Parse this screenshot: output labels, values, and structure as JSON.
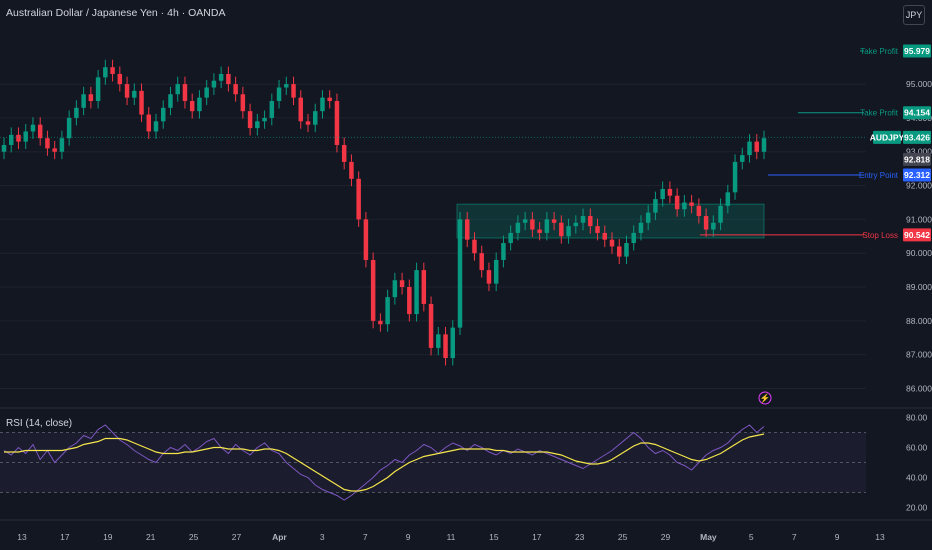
{
  "header": {
    "title": "Australian Dollar / Japanese Yen · 4h · OANDA",
    "currency": "JPY"
  },
  "rsi": {
    "label": "RSI (14, close)",
    "levels": [
      "80.00",
      "60.00",
      "40.00",
      "20.00"
    ]
  },
  "colors": {
    "background": "#131722",
    "up": "#089981",
    "down": "#f23645",
    "rsi_line": "#7e57c2",
    "rsi_ma": "#f5e64b",
    "entry": "#2962ff",
    "take_profit": "#089981",
    "stop_loss": "#f23645"
  },
  "chart_data": {
    "type": "candlestick",
    "symbol": "AUDJPY",
    "timeframe": "4h",
    "ylim": [
      85.6,
      96.6
    ],
    "price_ticks": [
      "95.000",
      "94.000",
      "93.000",
      "92.000",
      "91.000",
      "90.000",
      "89.000",
      "88.000",
      "87.000",
      "86.000"
    ],
    "x_ticks": [
      "13",
      "17",
      "19",
      "21",
      "25",
      "27",
      "Apr",
      "3",
      "7",
      "9",
      "11",
      "15",
      "17",
      "23",
      "25",
      "29",
      "May",
      "5",
      "7",
      "9",
      "13"
    ],
    "closes": [
      93.2,
      93.5,
      93.3,
      93.6,
      93.8,
      93.4,
      93.1,
      93.0,
      93.4,
      94.0,
      94.3,
      94.7,
      94.5,
      95.2,
      95.5,
      95.3,
      95.0,
      94.6,
      94.8,
      94.1,
      93.6,
      93.9,
      94.3,
      94.7,
      95.0,
      94.5,
      94.2,
      94.6,
      94.9,
      95.1,
      95.3,
      95.0,
      94.7,
      94.2,
      93.7,
      93.9,
      94.0,
      94.5,
      94.9,
      95.0,
      94.6,
      93.9,
      93.8,
      94.2,
      94.6,
      94.5,
      93.2,
      92.7,
      92.2,
      91.0,
      89.8,
      88.0,
      87.9,
      88.7,
      89.2,
      89.0,
      88.2,
      89.5,
      88.5,
      87.2,
      87.6,
      86.9,
      87.8,
      91.0,
      90.4,
      90.0,
      89.5,
      89.1,
      89.8,
      90.3,
      90.6,
      90.9,
      91.0,
      90.7,
      90.6,
      91.0,
      90.9,
      90.5,
      90.8,
      90.9,
      91.1,
      90.8,
      90.6,
      90.4,
      90.2,
      89.9,
      90.3,
      90.6,
      90.9,
      91.2,
      91.6,
      91.9,
      91.7,
      91.3,
      91.5,
      91.4,
      91.1,
      90.7,
      90.9,
      91.4,
      91.8,
      92.7,
      92.9,
      93.3,
      93.0,
      93.4
    ],
    "current_price": "93.426",
    "current_label": "AUDJPY",
    "marked_price": "92.818",
    "levels": [
      {
        "name": "Take Profit",
        "price": 95.979,
        "label": "95.979"
      },
      {
        "name": "Take Profit",
        "price": 94.154,
        "label": "94.154"
      },
      {
        "name": "Entry Point",
        "price": 92.312,
        "label": "92.312"
      },
      {
        "name": "Stop Loss",
        "price": 90.542,
        "label": "90.542"
      }
    ],
    "rsi_ylim": [
      15,
      85
    ],
    "rsi_values": [
      58,
      55,
      60,
      56,
      62,
      52,
      58,
      50,
      55,
      60,
      63,
      68,
      66,
      72,
      75,
      70,
      65,
      62,
      58,
      55,
      52,
      50,
      56,
      60,
      58,
      62,
      57,
      60,
      64,
      66,
      60,
      56,
      62,
      58,
      55,
      60,
      63,
      58,
      56,
      50,
      46,
      42,
      40,
      35,
      32,
      30,
      28,
      25,
      28,
      32,
      36,
      40,
      45,
      48,
      52,
      50,
      55,
      58,
      62,
      60,
      56,
      60,
      63,
      61,
      58,
      62,
      60,
      57,
      55,
      58,
      56,
      59,
      57,
      55,
      58,
      56,
      54,
      52,
      50,
      48,
      46,
      49,
      52,
      55,
      58,
      62,
      66,
      70,
      66,
      60,
      56,
      58,
      55,
      50,
      48,
      45,
      50,
      55,
      58,
      60,
      63,
      68,
      72,
      75,
      70,
      74
    ],
    "rsi_ma": [
      57,
      57,
      57,
      58,
      58,
      58,
      58,
      58,
      58,
      59,
      60,
      62,
      63,
      64,
      66,
      66,
      66,
      65,
      63,
      61,
      59,
      57,
      56,
      56,
      56,
      57,
      57,
      58,
      59,
      60,
      60,
      59,
      59,
      59,
      58,
      58,
      59,
      59,
      58,
      56,
      53,
      50,
      47,
      44,
      41,
      38,
      35,
      32,
      31,
      31,
      32,
      34,
      37,
      40,
      44,
      47,
      50,
      52,
      54,
      55,
      56,
      57,
      58,
      59,
      59,
      59,
      59,
      59,
      58,
      58,
      57,
      57,
      57,
      57,
      57,
      57,
      56,
      55,
      53,
      51,
      50,
      49,
      49,
      50,
      52,
      55,
      58,
      61,
      63,
      63,
      62,
      60,
      58,
      56,
      54,
      52,
      51,
      52,
      54,
      56,
      59,
      62,
      65,
      67,
      68,
      69
    ]
  }
}
